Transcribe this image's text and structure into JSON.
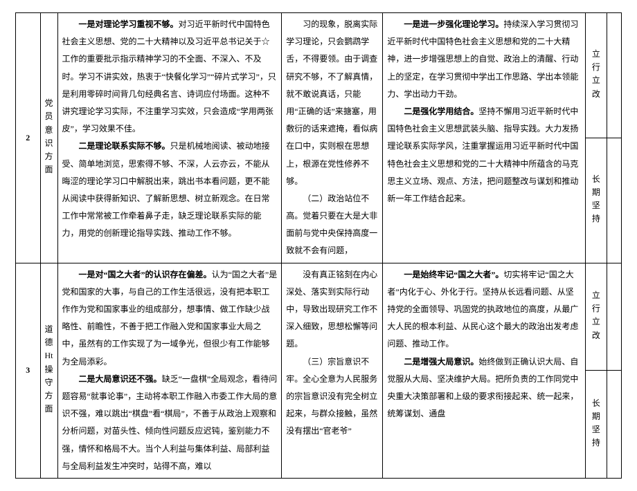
{
  "rows": [
    {
      "num": "2",
      "cat": "党员意识方面",
      "colA_parts": [
        {
          "bold": true,
          "text": "一是对理论学习重视不够。"
        },
        {
          "bold": false,
          "text": "对习近平新时代中国特色社会主义思想、党的二十大精神以及习近平总书记关于☆工作的重要批示指示精神学习的不全面、不深入、不及时。学习不讲实效，热衷于“快餐化学习”“碎片式学习”，只是利用零碎时间背几句经典名言、诗词应付场面。这种不讲究理论学习实际，不注重学习实效，只会造成“学用两张皮”，学习效果不佳。"
        }
      ],
      "colA_parts2": [
        {
          "bold": true,
          "text": "二是理论联系实际不够。"
        },
        {
          "bold": false,
          "text": "只是机械地阅读、被动地接受、简单地浏览，思索得不够、不深，人云亦云，不能从晦涩的理论学习口中解脱出来，跳出书本看问题，更不能从阅读中获得新知识、了解新思想、树立新观念。在日常工作中常常被工作牵着鼻子走，缺乏理论联系实际的能力，用党的创新理论指导实践、推动工作不够。"
        }
      ],
      "colB": "习的现象，脱离实际学习理论，只会鹦鹉学舌，不得要领。由于调查研究不够，不了解真情，就不敢说真话，只能用“正确的话”来搪塞，用敷衍的话来遮掩，看似病在口中，实则根在思想上，根源在党性修养不够。\n（二）政治站位不高。觉着只要在大是大非面前与党中央保持高度一致就不会有问题，",
      "colC_parts": [
        {
          "bold": true,
          "text": "一是进一步强化理论学习。"
        },
        {
          "bold": false,
          "text": "持续深入学习贯彻习近平新时代中国特色社会主义思想和党的二十大精神，进一步增强思想上的自觉、政治上的清醒、行动上的坚定，在学习贯彻中学出工作思路、学出本领能力、学出动力干劲。"
        }
      ],
      "colC_parts2": [
        {
          "bold": true,
          "text": "二是强化学用结合。"
        },
        {
          "bold": false,
          "text": "坚持不懈用习近平新时代中国特色社会主义思想武装头脑、指导实践。大力发扬理论联系实际学风，注重掌握运用习近平新时代中国特色社会主义思想和党的二十大精神中所蕴含的马克思主义立场、观点、方法，把问题整改与谋划和推动新一年工作结合起来。"
        }
      ],
      "colD": "立行立改\n长期坚持"
    },
    {
      "num": "3",
      "cat": "道德Ht操守方面",
      "colA_parts": [
        {
          "bold": true,
          "text": "一是对“国之大者”的认识存在偏差。"
        },
        {
          "bold": false,
          "text": "认为“国之大者”是党和国家的大事，与自己的工作生活很远，没有把本职工作作为党和国家事业的组成部分，想事情、做工作缺少战略性、前瞻性，不善于把工作融入党和国家事业大局之中，虽然有的工作实现了为一域争光，但很少有工作能够为全局添彩。"
        }
      ],
      "colA_parts2": [
        {
          "bold": true,
          "text": "二是大局意识还不强。"
        },
        {
          "bold": false,
          "text": "缺乏“一盘棋”全局观念，看待问题容易“就事论事”，主动将本职工作融入市委工作大局的意识不强，难以跳出“棋盘”看“棋局”，不善于从政治上观察和分析问题，对苗头性、倾向性问题反应迟钝，鉴别能力不强，情怀和格局不大。当个人利益与集体利益、局部利益与全局利益发生冲突时，站得不高，难以"
        }
      ],
      "colB": "没有真正铭刻在内心深处、落实到实际行动中，导致出现研究工作不深入细致，思想松懈等问题。\n（三）宗旨意识不牢。全心全意为人民服务的宗旨意识没有完全树立起来，与群众接触，虽然没有摆出“官老爷”",
      "colC_parts": [
        {
          "bold": true,
          "text": "一是始终牢记“国之大者”。"
        },
        {
          "bold": false,
          "text": "切实将牢记“国之大者”内化于心、外化于行。坚持从长远看问题、从坚持党的全面领导、巩固党的执政地位的高度，从最广大人民的根本利益、从民心这个最大的政治出发考虑问题、推动工作。"
        }
      ],
      "colC_parts2": [
        {
          "bold": true,
          "text": "二是增强大局意识。"
        },
        {
          "bold": false,
          "text": "始终做到正确认识大局、自觉服从大局、坚决维护大局。把所负责的工作同党中央重大决策部署和上级的要求衔接起来、统一起来，统筹谋划、通盘"
        }
      ],
      "colD": "立行立改\n长期坚持"
    }
  ]
}
